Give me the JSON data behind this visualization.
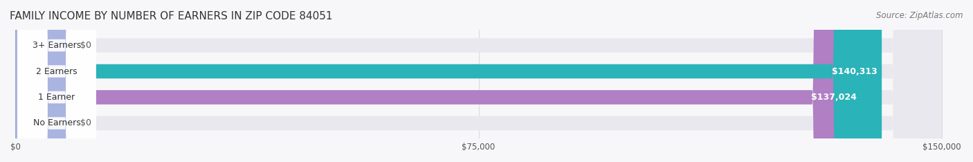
{
  "title": "FAMILY INCOME BY NUMBER OF EARNERS IN ZIP CODE 84051",
  "source": "Source: ZipAtlas.com",
  "categories": [
    "No Earners",
    "1 Earner",
    "2 Earners",
    "3+ Earners"
  ],
  "values": [
    0,
    137024,
    140313,
    0
  ],
  "value_labels": [
    "$0",
    "$137,024",
    "$140,313",
    "$0"
  ],
  "bar_colors": [
    "#aab4e0",
    "#b07fc4",
    "#2ab3b8",
    "#aab4e0"
  ],
  "bar_bg_colors": [
    "#f0f0f5",
    "#f0f0f5",
    "#f0f0f5",
    "#f0f0f5"
  ],
  "xlim": [
    0,
    150000
  ],
  "xticks": [
    0,
    75000,
    150000
  ],
  "xtick_labels": [
    "$0",
    "$75,000",
    "$150,000"
  ],
  "background_color": "#f7f7f9",
  "bar_height": 0.55,
  "title_fontsize": 11,
  "label_fontsize": 9,
  "tick_fontsize": 8.5,
  "source_fontsize": 8.5
}
